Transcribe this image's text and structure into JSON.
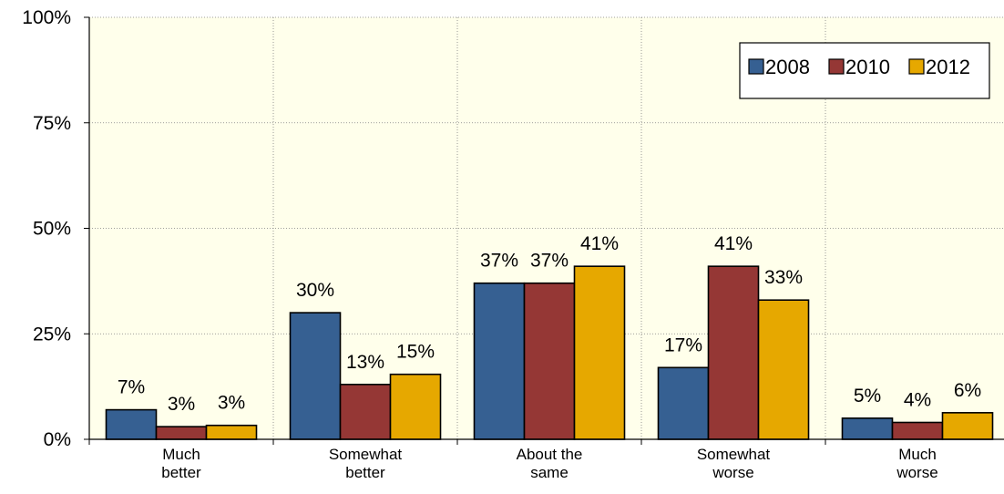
{
  "chart_data": {
    "type": "bar",
    "categories": [
      "Much\nbetter",
      "Somewhat\nbetter",
      "About the\nsame",
      "Somewhat\nworse",
      "Much\nworse"
    ],
    "series": [
      {
        "name": "2008",
        "values": [
          7,
          30,
          37,
          17,
          5
        ],
        "labels": [
          "7%",
          "30%",
          "37%",
          "17%",
          "5%"
        ]
      },
      {
        "name": "2010",
        "values": [
          3,
          13,
          37,
          41,
          4
        ],
        "labels": [
          "3%",
          "13%",
          "37%",
          "41%",
          "4%"
        ]
      },
      {
        "name": "2012",
        "values": [
          3.3,
          15.4,
          41,
          33,
          6.3
        ],
        "labels": [
          "3%",
          "15%",
          "41%",
          "33%",
          "6%"
        ]
      }
    ],
    "ylim": [
      0,
      100
    ],
    "yticks": [
      0,
      25,
      50,
      75,
      100
    ],
    "ytick_labels": [
      "0%",
      "25%",
      "50%",
      "75%",
      "100%"
    ],
    "title": "",
    "xlabel": "",
    "ylabel": "",
    "grid": true,
    "legend": "top-right",
    "colors": {
      "series": [
        "#366092",
        "#953735",
        "#E6A800"
      ],
      "plot_background": "#FFFFEB",
      "gridline": "#808080"
    }
  }
}
